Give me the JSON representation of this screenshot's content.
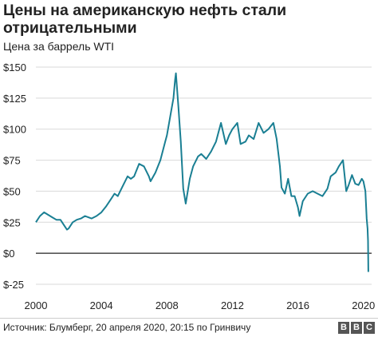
{
  "title": "Цены на американскую нефть стали отрицательными",
  "subtitle": "Цена за баррель WTI",
  "source": "Источник: Блумберг, 20 апреля 2020, 20:15 по Гринвичу",
  "logo": [
    "B",
    "B",
    "C"
  ],
  "colors": {
    "line": "#1a7f93",
    "grid": "#d9d9d9",
    "zero": "#222222",
    "text": "#222222"
  },
  "chart_data": {
    "type": "line",
    "title": "Цены на американскую нефть стали отрицательными",
    "subtitle": "Цена за баррель WTI",
    "ylim": [
      -25,
      150
    ],
    "xlim": [
      2000,
      2020.5
    ],
    "y_ticks": [
      {
        "value": 150,
        "label": "$150"
      },
      {
        "value": 125,
        "label": "$125"
      },
      {
        "value": 100,
        "label": "$100"
      },
      {
        "value": 75,
        "label": "$75"
      },
      {
        "value": 50,
        "label": "$50"
      },
      {
        "value": 25,
        "label": "$25"
      },
      {
        "value": 0,
        "label": "$0"
      },
      {
        "value": -25,
        "label": "$-25"
      }
    ],
    "x_ticks": [
      {
        "value": 2000,
        "label": "2000"
      },
      {
        "value": 2004,
        "label": "2004"
      },
      {
        "value": 2008,
        "label": "2008"
      },
      {
        "value": 2012,
        "label": "2012"
      },
      {
        "value": 2016,
        "label": "2016"
      },
      {
        "value": 2020,
        "label": "2020"
      }
    ],
    "grid": true,
    "series": [
      {
        "x": [
          2000.0,
          2000.25,
          2000.5,
          2000.75,
          2001.0,
          2001.25,
          2001.5,
          2001.75,
          2001.9,
          2002.0,
          2002.25,
          2002.5,
          2002.75,
          2003.0,
          2003.2,
          2003.4,
          2003.7,
          2004.0,
          2004.3,
          2004.6,
          2004.8,
          2005.0,
          2005.3,
          2005.6,
          2005.8,
          2006.0,
          2006.3,
          2006.6,
          2006.9,
          2007.0,
          2007.3,
          2007.6,
          2007.9,
          2008.0,
          2008.2,
          2008.4,
          2008.5,
          2008.55,
          2008.7,
          2008.85,
          2009.0,
          2009.15,
          2009.4,
          2009.6,
          2009.9,
          2010.1,
          2010.4,
          2010.7,
          2011.0,
          2011.3,
          2011.6,
          2011.8,
          2012.0,
          2012.3,
          2012.5,
          2012.8,
          2013.0,
          2013.3,
          2013.6,
          2013.9,
          2014.2,
          2014.5,
          2014.7,
          2014.9,
          2015.0,
          2015.2,
          2015.4,
          2015.6,
          2015.8,
          2016.0,
          2016.1,
          2016.3,
          2016.6,
          2016.9,
          2017.2,
          2017.5,
          2017.8,
          2018.0,
          2018.3,
          2018.5,
          2018.75,
          2018.95,
          2019.1,
          2019.3,
          2019.5,
          2019.7,
          2019.9,
          2020.0,
          2020.12,
          2020.2,
          2020.25,
          2020.28,
          2020.3
        ],
        "y": [
          25,
          30,
          33,
          31,
          29,
          27,
          27,
          22,
          19,
          20,
          25,
          27,
          28,
          30,
          29,
          28,
          30,
          33,
          38,
          44,
          48,
          46,
          54,
          62,
          60,
          62,
          72,
          70,
          62,
          58,
          65,
          75,
          90,
          95,
          110,
          125,
          140,
          145,
          118,
          90,
          52,
          40,
          60,
          70,
          78,
          80,
          76,
          82,
          90,
          105,
          88,
          95,
          100,
          105,
          88,
          90,
          95,
          92,
          105,
          97,
          100,
          105,
          92,
          70,
          53,
          48,
          60,
          46,
          46,
          37,
          30,
          42,
          48,
          50,
          48,
          46,
          52,
          62,
          65,
          70,
          75,
          50,
          55,
          63,
          56,
          55,
          60,
          58,
          50,
          28,
          20,
          10,
          -15
        ]
      }
    ]
  }
}
